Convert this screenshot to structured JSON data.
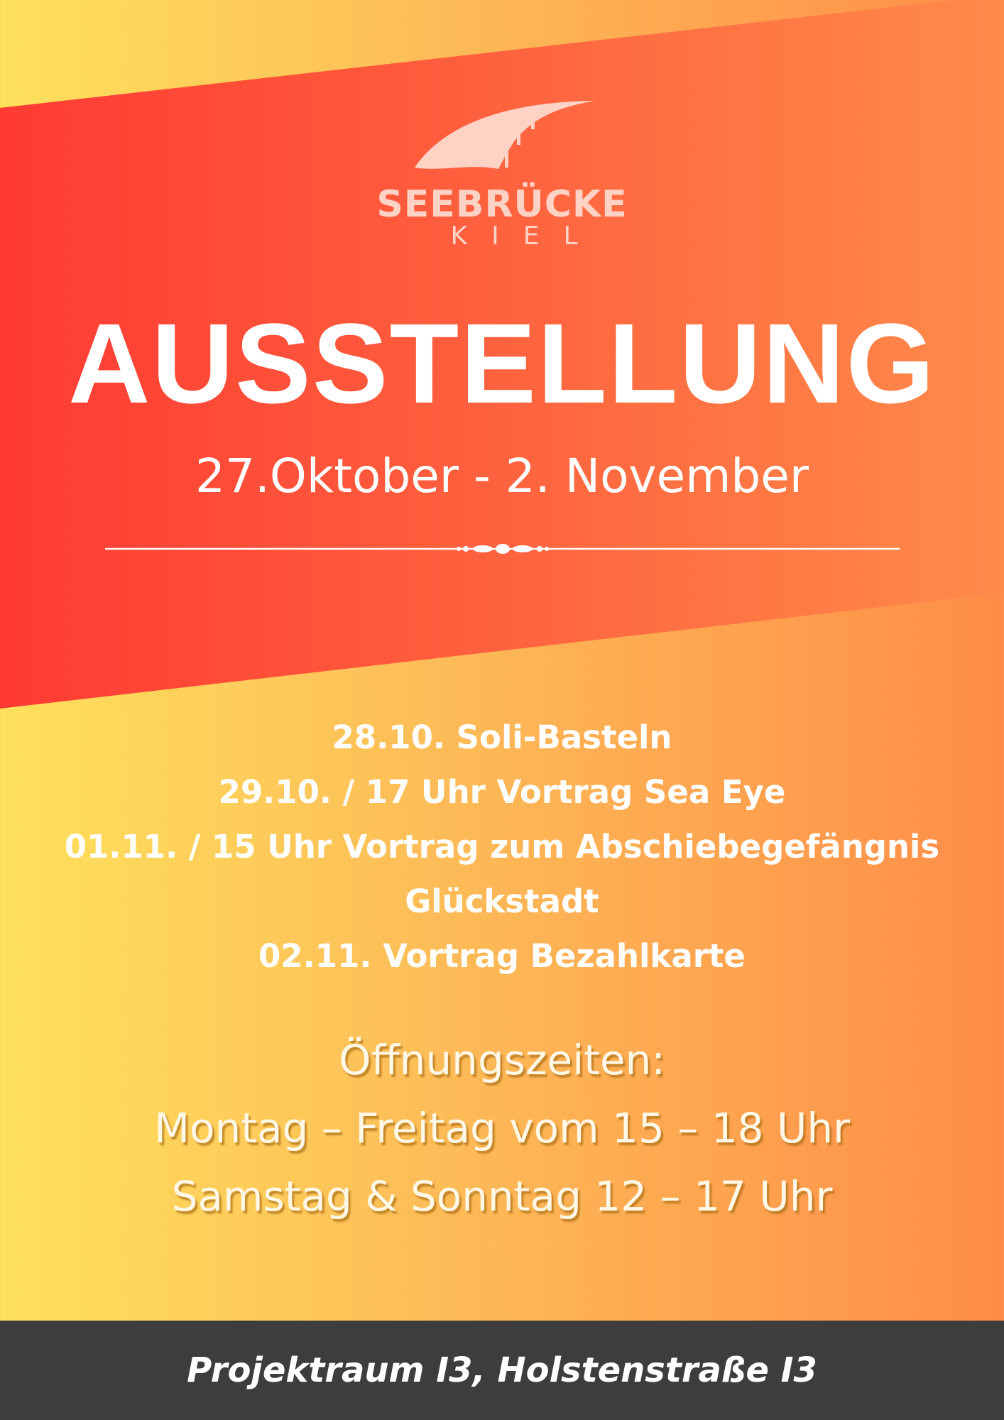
{
  "colors": {
    "band_left": "#ff3a33",
    "band_right": "#ff8b4a",
    "bg_left": "#ffe15c",
    "bg_right": "#ff8c48",
    "footer": "#3d3d3d",
    "logo": "#ffd2c6"
  },
  "logo": {
    "brand": "SEEBRÜCKE",
    "city": "KIEL",
    "icon": "bridge-logo-icon"
  },
  "title": "AUSSTELLUNG",
  "dates": "27.Oktober - 2. November",
  "events": [
    "28.10. Soli-Basteln",
    "29.10. / 17 Uhr Vortrag Sea Eye",
    "01.11. / 15 Uhr Vortrag zum Abschiebegefängnis",
    "Glückstadt",
    "02.11. Vortrag Bezahlkarte"
  ],
  "hours": {
    "heading": "Öffnungszeiten:",
    "weekdays": "Montag – Freitag vom 15 – 18 Uhr",
    "weekend": "Samstag & Sonntag 12 – 17 Uhr"
  },
  "footer": "Projektraum I3, Holstenstraße I3"
}
